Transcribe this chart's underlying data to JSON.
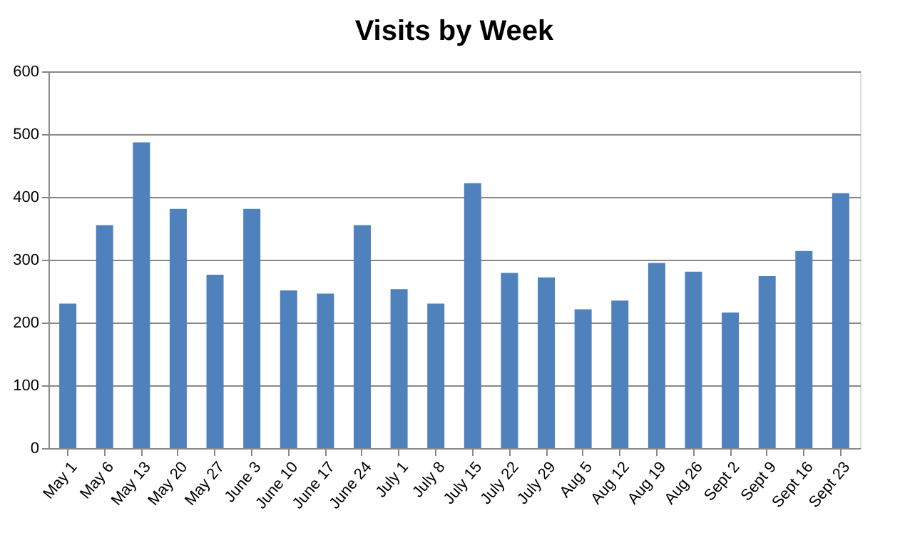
{
  "chart_data": {
    "type": "bar",
    "title": "Visits by Week",
    "categories": [
      "May 1",
      "May 6",
      "May 13",
      "May 20",
      "May 27",
      "June 3",
      "June 10",
      "June 17",
      "June 24",
      "July 1",
      "July 8",
      "July 15",
      "July 22",
      "July 29",
      "Aug 5",
      "Aug 12",
      "Aug 19",
      "Aug 26",
      "Sept 2",
      "Sept 9",
      "Sept 16",
      "Sept 23"
    ],
    "values": [
      230,
      355,
      487,
      381,
      276,
      381,
      251,
      246,
      355,
      253,
      230,
      422,
      279,
      272,
      221,
      235,
      295,
      281,
      216,
      274,
      314,
      406
    ],
    "color": "#4f81bd",
    "ylim": [
      0,
      600
    ],
    "yticks": [
      0,
      100,
      200,
      300,
      400,
      500,
      600
    ],
    "grid": "y"
  }
}
